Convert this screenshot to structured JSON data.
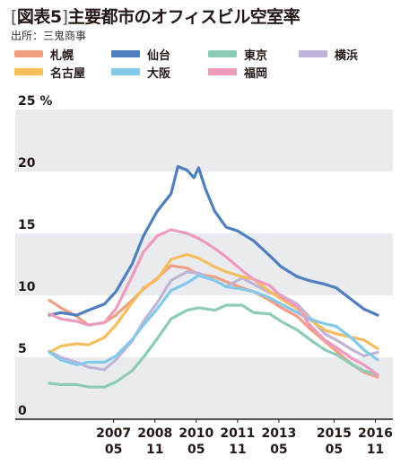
{
  "header": {
    "title_bracket_open": "[",
    "title_fig": "図表5",
    "title_bracket_close": "]",
    "title_text": "主要都市のオフィスビル空室率",
    "source": "出所：三鬼商事"
  },
  "chart_data": {
    "type": "line",
    "title": "主要都市のオフィスビル空室率",
    "xlabel": "",
    "ylabel": "",
    "y_unit": "%",
    "ylim": [
      0,
      25
    ],
    "xlim": [
      "2005-01",
      "2016-12"
    ],
    "grid": "alternating horizontal bands",
    "legend_position": "top",
    "y_ticks": [
      {
        "value": 0,
        "label": "0"
      },
      {
        "value": 5,
        "label": "5"
      },
      {
        "value": 10,
        "label": "10"
      },
      {
        "value": 15,
        "label": "15"
      },
      {
        "value": 20,
        "label": "20"
      },
      {
        "value": 25,
        "label": "25 %"
      }
    ],
    "x_ticks": [
      {
        "x": "2007-05",
        "line1": "2007",
        "line2": "05"
      },
      {
        "x": "2008-11",
        "line1": "2008",
        "line2": "11"
      },
      {
        "x": "2010-05",
        "line1": "2010",
        "line2": "05"
      },
      {
        "x": "2011-11",
        "line1": "2011",
        "line2": "11"
      },
      {
        "x": "2013-05",
        "line1": "2013",
        "line2": "05"
      },
      {
        "x": "2015-05",
        "line1": "2015",
        "line2": "05"
      },
      {
        "x": "2016-11",
        "line1": "2016",
        "line2": "11"
      }
    ],
    "series": [
      {
        "name": "札幌",
        "color": "#f09f80",
        "points": [
          [
            "2005-01",
            9.6
          ],
          [
            "2005-06",
            9.0
          ],
          [
            "2006-01",
            8.3
          ],
          [
            "2006-06",
            7.6
          ],
          [
            "2007-01",
            7.8
          ],
          [
            "2007-06",
            8.4
          ],
          [
            "2008-01",
            9.6
          ],
          [
            "2008-06",
            10.5
          ],
          [
            "2008-12",
            11.4
          ],
          [
            "2009-06",
            12.4
          ],
          [
            "2010-01",
            12.2
          ],
          [
            "2010-06",
            11.7
          ],
          [
            "2011-01",
            11.5
          ],
          [
            "2011-06",
            11.1
          ],
          [
            "2012-01",
            10.6
          ],
          [
            "2012-06",
            10.3
          ],
          [
            "2013-01",
            9.6
          ],
          [
            "2013-06",
            9.0
          ],
          [
            "2014-01",
            8.3
          ],
          [
            "2014-06",
            7.4
          ],
          [
            "2015-01",
            6.3
          ],
          [
            "2015-06",
            5.5
          ],
          [
            "2016-01",
            4.4
          ],
          [
            "2016-06",
            3.8
          ],
          [
            "2016-12",
            3.4
          ]
        ]
      },
      {
        "name": "仙台",
        "color": "#4f7fbf",
        "points": [
          [
            "2005-01",
            8.4
          ],
          [
            "2005-06",
            8.6
          ],
          [
            "2006-01",
            8.4
          ],
          [
            "2006-06",
            8.8
          ],
          [
            "2007-01",
            9.3
          ],
          [
            "2007-06",
            10.3
          ],
          [
            "2008-01",
            12.5
          ],
          [
            "2008-06",
            14.8
          ],
          [
            "2008-12",
            16.8
          ],
          [
            "2009-06",
            18.2
          ],
          [
            "2009-09",
            20.4
          ],
          [
            "2010-01",
            20.1
          ],
          [
            "2010-04",
            19.5
          ],
          [
            "2010-06",
            20.3
          ],
          [
            "2010-09",
            18.6
          ],
          [
            "2011-01",
            16.8
          ],
          [
            "2011-06",
            15.5
          ],
          [
            "2011-11",
            15.2
          ],
          [
            "2012-06",
            14.4
          ],
          [
            "2013-01",
            13.2
          ],
          [
            "2013-06",
            12.3
          ],
          [
            "2014-01",
            11.5
          ],
          [
            "2014-06",
            11.2
          ],
          [
            "2015-01",
            10.9
          ],
          [
            "2015-06",
            10.6
          ],
          [
            "2016-01",
            9.6
          ],
          [
            "2016-06",
            8.9
          ],
          [
            "2016-12",
            8.4
          ]
        ]
      },
      {
        "name": "東京",
        "color": "#8dcbb9",
        "points": [
          [
            "2005-01",
            2.9
          ],
          [
            "2005-06",
            2.8
          ],
          [
            "2006-01",
            2.8
          ],
          [
            "2006-06",
            2.6
          ],
          [
            "2007-01",
            2.6
          ],
          [
            "2007-06",
            3.0
          ],
          [
            "2008-01",
            3.9
          ],
          [
            "2008-06",
            5.0
          ],
          [
            "2008-12",
            6.5
          ],
          [
            "2009-06",
            8.1
          ],
          [
            "2010-01",
            8.8
          ],
          [
            "2010-06",
            9.0
          ],
          [
            "2011-01",
            8.8
          ],
          [
            "2011-06",
            9.2
          ],
          [
            "2012-01",
            9.2
          ],
          [
            "2012-06",
            8.6
          ],
          [
            "2013-01",
            8.5
          ],
          [
            "2013-06",
            7.9
          ],
          [
            "2014-01",
            7.2
          ],
          [
            "2014-06",
            6.5
          ],
          [
            "2015-01",
            5.6
          ],
          [
            "2015-06",
            5.2
          ],
          [
            "2016-01",
            4.4
          ],
          [
            "2016-06",
            3.9
          ],
          [
            "2016-12",
            3.6
          ]
        ]
      },
      {
        "name": "横浜",
        "color": "#bfb3d8",
        "points": [
          [
            "2005-01",
            5.5
          ],
          [
            "2005-06",
            5.0
          ],
          [
            "2006-01",
            4.6
          ],
          [
            "2006-06",
            4.2
          ],
          [
            "2007-01",
            4.0
          ],
          [
            "2007-06",
            4.8
          ],
          [
            "2008-01",
            6.3
          ],
          [
            "2008-06",
            7.9
          ],
          [
            "2008-12",
            9.4
          ],
          [
            "2009-06",
            11.2
          ],
          [
            "2010-01",
            11.9
          ],
          [
            "2010-06",
            11.8
          ],
          [
            "2011-01",
            11.2
          ],
          [
            "2011-06",
            10.7
          ],
          [
            "2012-01",
            11.4
          ],
          [
            "2012-06",
            10.9
          ],
          [
            "2013-01",
            10.2
          ],
          [
            "2013-06",
            10.0
          ],
          [
            "2014-01",
            9.3
          ],
          [
            "2014-06",
            8.3
          ],
          [
            "2015-01",
            6.9
          ],
          [
            "2015-06",
            6.4
          ],
          [
            "2016-01",
            5.6
          ],
          [
            "2016-06",
            5.1
          ],
          [
            "2016-12",
            5.4
          ]
        ]
      },
      {
        "name": "名古屋",
        "color": "#f5bd5c",
        "points": [
          [
            "2005-01",
            5.4
          ],
          [
            "2005-06",
            5.9
          ],
          [
            "2006-01",
            6.1
          ],
          [
            "2006-06",
            6.0
          ],
          [
            "2007-01",
            6.6
          ],
          [
            "2007-06",
            7.6
          ],
          [
            "2008-01",
            9.4
          ],
          [
            "2008-06",
            10.6
          ],
          [
            "2008-12",
            11.3
          ],
          [
            "2009-06",
            12.9
          ],
          [
            "2010-01",
            13.3
          ],
          [
            "2010-06",
            13.0
          ],
          [
            "2011-01",
            12.3
          ],
          [
            "2011-06",
            11.9
          ],
          [
            "2012-01",
            11.5
          ],
          [
            "2012-06",
            11.3
          ],
          [
            "2013-01",
            10.3
          ],
          [
            "2013-06",
            9.7
          ],
          [
            "2014-01",
            8.9
          ],
          [
            "2014-06",
            8.1
          ],
          [
            "2015-01",
            7.2
          ],
          [
            "2015-06",
            6.9
          ],
          [
            "2016-01",
            6.6
          ],
          [
            "2016-06",
            6.4
          ],
          [
            "2016-12",
            5.7
          ]
        ]
      },
      {
        "name": "大阪",
        "color": "#82c9ea",
        "points": [
          [
            "2005-01",
            5.4
          ],
          [
            "2005-06",
            4.8
          ],
          [
            "2006-01",
            4.4
          ],
          [
            "2006-06",
            4.6
          ],
          [
            "2007-01",
            4.6
          ],
          [
            "2007-06",
            5.1
          ],
          [
            "2008-01",
            6.4
          ],
          [
            "2008-06",
            7.6
          ],
          [
            "2008-12",
            8.9
          ],
          [
            "2009-06",
            10.4
          ],
          [
            "2010-01",
            11.0
          ],
          [
            "2010-06",
            11.6
          ],
          [
            "2011-01",
            11.2
          ],
          [
            "2011-06",
            10.7
          ],
          [
            "2012-01",
            10.5
          ],
          [
            "2012-06",
            10.3
          ],
          [
            "2013-01",
            9.8
          ],
          [
            "2013-06",
            9.3
          ],
          [
            "2014-01",
            8.6
          ],
          [
            "2014-06",
            8.1
          ],
          [
            "2015-01",
            7.7
          ],
          [
            "2015-06",
            7.5
          ],
          [
            "2016-01",
            6.5
          ],
          [
            "2016-06",
            5.6
          ],
          [
            "2016-12",
            4.8
          ]
        ]
      },
      {
        "name": "福岡",
        "color": "#ef9bbf",
        "points": [
          [
            "2005-01",
            8.5
          ],
          [
            "2005-06",
            8.1
          ],
          [
            "2006-01",
            7.9
          ],
          [
            "2006-06",
            7.6
          ],
          [
            "2007-01",
            7.8
          ],
          [
            "2007-06",
            8.9
          ],
          [
            "2008-01",
            11.5
          ],
          [
            "2008-06",
            13.5
          ],
          [
            "2008-12",
            14.8
          ],
          [
            "2009-06",
            15.3
          ],
          [
            "2010-01",
            15.0
          ],
          [
            "2010-06",
            14.6
          ],
          [
            "2011-01",
            13.8
          ],
          [
            "2011-06",
            13.1
          ],
          [
            "2012-01",
            12.0
          ],
          [
            "2012-06",
            11.3
          ],
          [
            "2013-01",
            10.8
          ],
          [
            "2013-06",
            9.9
          ],
          [
            "2014-01",
            9.1
          ],
          [
            "2014-06",
            7.7
          ],
          [
            "2015-01",
            6.4
          ],
          [
            "2015-06",
            5.8
          ],
          [
            "2016-01",
            4.9
          ],
          [
            "2016-06",
            4.4
          ],
          [
            "2016-12",
            3.6
          ]
        ]
      }
    ]
  },
  "legend": {
    "items": [
      {
        "label": "札幌",
        "color": "#f09f80"
      },
      {
        "label": "仙台",
        "color": "#4f7fbf"
      },
      {
        "label": "東京",
        "color": "#8dcbb9"
      },
      {
        "label": "横浜",
        "color": "#bfb3d8"
      },
      {
        "label": "名古屋",
        "color": "#f5bd5c"
      },
      {
        "label": "大阪",
        "color": "#82c9ea"
      },
      {
        "label": "福岡",
        "color": "#ef9bbf"
      }
    ]
  },
  "colors": {
    "band": "#e9ebee",
    "axis": "#231815"
  }
}
